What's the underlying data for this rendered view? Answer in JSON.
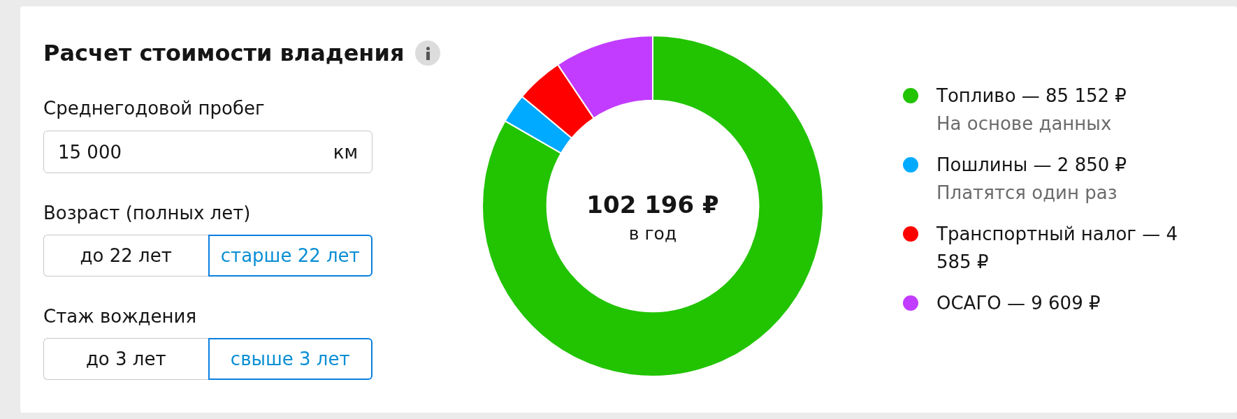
{
  "chart_data": [
    {
      "type": "other",
      "title": "Расчет стоимости владения",
      "annotations": [
        "Среднегодовой пробег",
        "15 000",
        "км",
        "Возраст (полных лет)",
        "до 22 лет",
        "старше 22 лет",
        "Стаж вождения",
        "до 3 лет",
        "свыше 3 лет"
      ]
    },
    {
      "type": "donut",
      "categories": [
        "Топливо — 85 152 ₽",
        "Пошлины — 2 850 ₽",
        "Транспортный налог — 4 585 ₽",
        "ОСАГО — 9 609 ₽"
      ],
      "values": [
        85152,
        2850,
        4585,
        9609
      ],
      "colors": [
        "#22c300",
        "#00aaff",
        "#ff0000",
        "#c13cff"
      ],
      "legend": "right",
      "annotations": [
        "102 196 ₽",
        "в год",
        "На основе данных",
        "Платятся один раз"
      ]
    }
  ]
}
